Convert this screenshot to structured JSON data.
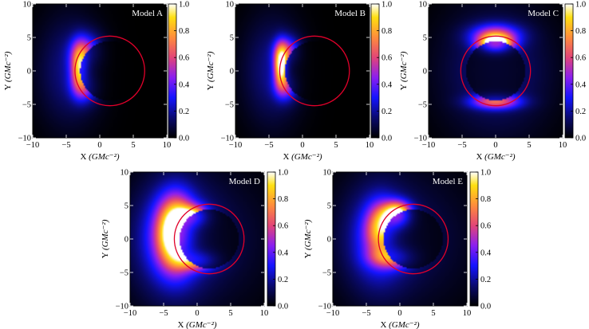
{
  "chart_data": [
    {
      "type": "heatmap",
      "title": "Model A",
      "xlabel": "X",
      "xlabel_unit": "(GMc⁻²)",
      "ylabel": "Y",
      "ylabel_unit": "(GMc⁻²)",
      "xlim": [
        -10,
        10
      ],
      "ylim": [
        -10,
        10
      ],
      "x_ticks": [
        -10,
        -5,
        0,
        5,
        10
      ],
      "y_ticks": [
        -10,
        -5,
        0,
        5,
        10
      ],
      "colorbar": {
        "range": [
          0.0,
          1.0
        ],
        "ticks": [
          "0.0",
          "0.2",
          "0.4",
          "0.6",
          "0.8",
          "1.0"
        ],
        "colormap": "gnuplot2"
      },
      "circle": {
        "cx": 1.5,
        "cy": 0,
        "r": 5.2,
        "color": "#e0002a"
      },
      "emission": [
        {
          "x": -3.0,
          "y": 0.5,
          "sx": 0.9,
          "sy": 2.3,
          "a": 0.65
        },
        {
          "x": -2.0,
          "y": 3.0,
          "sx": 1.6,
          "sy": 1.8,
          "a": 0.35
        },
        {
          "x": -2.2,
          "y": -2.5,
          "sx": 1.4,
          "sy": 1.6,
          "a": 0.3
        },
        {
          "x": -4.5,
          "y": 0.0,
          "sx": 3.2,
          "sy": 5.5,
          "a": 0.18
        }
      ]
    },
    {
      "type": "heatmap",
      "title": "Model B",
      "xlabel": "X",
      "xlabel_unit": "(GMc⁻²)",
      "ylabel": "Y",
      "ylabel_unit": "(GMc⁻²)",
      "xlim": [
        -10,
        10
      ],
      "ylim": [
        -10,
        10
      ],
      "x_ticks": [
        -10,
        -5,
        0,
        5,
        10
      ],
      "y_ticks": [
        -10,
        -5,
        0,
        5,
        10
      ],
      "colorbar": {
        "range": [
          0.0,
          1.0
        ],
        "ticks": [
          "0.0",
          "0.2",
          "0.4",
          "0.6",
          "0.8",
          "1.0"
        ],
        "colormap": "gnuplot2"
      },
      "circle": {
        "cx": 1.8,
        "cy": 0,
        "r": 5.2,
        "color": "#e0002a"
      },
      "emission": [
        {
          "x": -3.2,
          "y": 0.8,
          "sx": 0.7,
          "sy": 2.0,
          "a": 0.85
        },
        {
          "x": -2.3,
          "y": 3.0,
          "sx": 1.3,
          "sy": 1.5,
          "a": 0.4
        },
        {
          "x": -2.5,
          "y": -2.4,
          "sx": 1.2,
          "sy": 1.5,
          "a": 0.35
        },
        {
          "x": -4.5,
          "y": 0.0,
          "sx": 3.0,
          "sy": 5.5,
          "a": 0.18
        }
      ]
    },
    {
      "type": "heatmap",
      "title": "Model C",
      "xlabel": "X",
      "xlabel_unit": "(GMc⁻²)",
      "ylabel": "Y",
      "ylabel_unit": "(GMc⁻²)",
      "xlim": [
        -10,
        10
      ],
      "ylim": [
        -10,
        10
      ],
      "x_ticks": [
        -10,
        -5,
        0,
        5,
        10
      ],
      "y_ticks": [
        -10,
        -5,
        0,
        5,
        10
      ],
      "colorbar": {
        "range": [
          0.0,
          1.0
        ],
        "ticks": [
          "0.0",
          "0.2",
          "0.4",
          "0.6",
          "0.8",
          "1.0"
        ],
        "colormap": "gnuplot2"
      },
      "circle": {
        "cx": 0,
        "cy": 0,
        "r": 5.2,
        "color": "#e0002a"
      },
      "emission": [
        {
          "x": 0.0,
          "y": 4.0,
          "sx": 1.6,
          "sy": 0.9,
          "a": 0.95
        },
        {
          "x": 0.0,
          "y": 5.3,
          "sx": 2.6,
          "sy": 1.2,
          "a": 0.5
        },
        {
          "x": 0.0,
          "y": -4.6,
          "sx": 2.6,
          "sy": 0.8,
          "a": 0.55
        },
        {
          "x": 0.0,
          "y": 0.0,
          "sx": 5.5,
          "sy": 6.5,
          "a": 0.18
        }
      ]
    },
    {
      "type": "heatmap",
      "title": "Model D",
      "xlabel": "X",
      "xlabel_unit": "(GMc⁻²)",
      "ylabel": "Y",
      "ylabel_unit": "(GMc⁻²)",
      "xlim": [
        -10,
        10
      ],
      "ylim": [
        -10,
        10
      ],
      "x_ticks": [
        -10,
        -5,
        0,
        5,
        10
      ],
      "y_ticks": [
        -10,
        -5,
        0,
        5,
        10
      ],
      "colorbar": {
        "range": [
          0.0,
          1.0
        ],
        "ticks": [
          "0.0",
          "0.2",
          "0.4",
          "0.6",
          "0.8",
          "1.0"
        ],
        "colormap": "gnuplot2"
      },
      "circle": {
        "cx": 1.8,
        "cy": 0,
        "r": 5.2,
        "color": "#e0002a"
      },
      "emission": [
        {
          "x": -3.2,
          "y": 1.0,
          "sx": 1.8,
          "sy": 3.4,
          "a": 0.95
        },
        {
          "x": -0.5,
          "y": 3.4,
          "sx": 1.6,
          "sy": 1.1,
          "a": 0.6
        },
        {
          "x": 0.2,
          "y": -3.2,
          "sx": 2.0,
          "sy": 1.0,
          "a": 0.5
        },
        {
          "x": -3.8,
          "y": 0.0,
          "sx": 3.5,
          "sy": 5.5,
          "a": 0.35
        },
        {
          "x": 0.0,
          "y": 0.0,
          "sx": 7.0,
          "sy": 7.0,
          "a": 0.12
        }
      ]
    },
    {
      "type": "heatmap",
      "title": "Model E",
      "xlabel": "X",
      "xlabel_unit": "(GMc⁻²)",
      "ylabel": "Y",
      "ylabel_unit": "(GMc⁻²)",
      "xlim": [
        -10,
        10
      ],
      "ylim": [
        -10,
        10
      ],
      "x_ticks": [
        -10,
        -5,
        0,
        5,
        10
      ],
      "y_ticks": [
        -10,
        -5,
        0,
        5,
        10
      ],
      "colorbar": {
        "range": [
          0.0,
          1.0
        ],
        "ticks": [
          "0.0",
          "0.2",
          "0.4",
          "0.6",
          "0.8",
          "1.0"
        ],
        "colormap": "gnuplot2"
      },
      "circle": {
        "cx": 2.0,
        "cy": 0,
        "r": 5.2,
        "color": "#e0002a"
      },
      "emission": [
        {
          "x": -0.3,
          "y": 3.6,
          "sx": 1.4,
          "sy": 1.3,
          "a": 0.95
        },
        {
          "x": -2.8,
          "y": 1.6,
          "sx": 1.5,
          "sy": 2.5,
          "a": 0.55
        },
        {
          "x": -1.0,
          "y": -2.8,
          "sx": 2.2,
          "sy": 1.1,
          "a": 0.45
        },
        {
          "x": -3.3,
          "y": 0.0,
          "sx": 3.0,
          "sy": 5.0,
          "a": 0.3
        },
        {
          "x": 0.0,
          "y": 0.0,
          "sx": 7.0,
          "sy": 7.0,
          "a": 0.12
        }
      ]
    }
  ]
}
